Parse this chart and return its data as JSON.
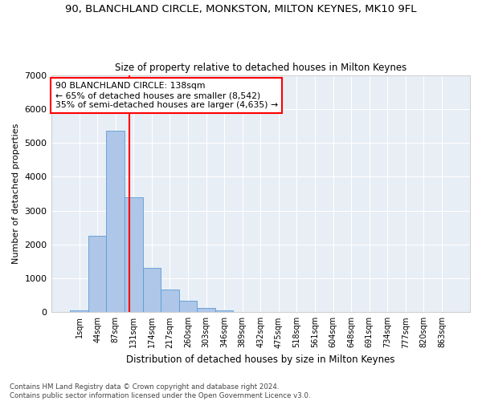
{
  "title": "90, BLANCHLAND CIRCLE, MONKSTON, MILTON KEYNES, MK10 9FL",
  "subtitle": "Size of property relative to detached houses in Milton Keynes",
  "xlabel": "Distribution of detached houses by size in Milton Keynes",
  "ylabel": "Number of detached properties",
  "categories": [
    "1sqm",
    "44sqm",
    "87sqm",
    "131sqm",
    "174sqm",
    "217sqm",
    "260sqm",
    "303sqm",
    "346sqm",
    "389sqm",
    "432sqm",
    "475sqm",
    "518sqm",
    "561sqm",
    "604sqm",
    "648sqm",
    "691sqm",
    "734sqm",
    "777sqm",
    "820sqm",
    "863sqm"
  ],
  "values": [
    50,
    2250,
    5350,
    3400,
    1300,
    680,
    350,
    130,
    50,
    0,
    0,
    0,
    0,
    0,
    0,
    0,
    0,
    0,
    0,
    0,
    0
  ],
  "bar_color": "#aec6e8",
  "bar_edge_color": "#5b9bd5",
  "vline_x": 2.78,
  "vline_color": "red",
  "annotation_text": "90 BLANCHLAND CIRCLE: 138sqm\n← 65% of detached houses are smaller (8,542)\n35% of semi-detached houses are larger (4,635) →",
  "annotation_box_color": "white",
  "annotation_box_edge_color": "red",
  "ylim": [
    0,
    7000
  ],
  "yticks": [
    0,
    1000,
    2000,
    3000,
    4000,
    5000,
    6000,
    7000
  ],
  "background_color": "#e8eef5",
  "grid_color": "white",
  "footer_line1": "Contains HM Land Registry data © Crown copyright and database right 2024.",
  "footer_line2": "Contains public sector information licensed under the Open Government Licence v3.0.",
  "title_fontsize": 9.5,
  "subtitle_fontsize": 8.5,
  "annotation_fontsize": 7.8,
  "ylabel_fontsize": 8,
  "xlabel_fontsize": 8.5
}
